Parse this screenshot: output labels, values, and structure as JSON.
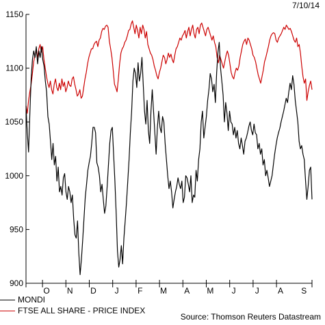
{
  "header": {
    "date": "7/10/14"
  },
  "footer": {
    "source": "Source: Thomson Reuters Datastream"
  },
  "chart_data": {
    "type": "line",
    "title": "",
    "xlabel": "",
    "ylabel": "",
    "ylim": [
      900,
      1150
    ],
    "yticks": [
      900,
      950,
      1000,
      1050,
      1100,
      1150
    ],
    "month_labels": [
      "O",
      "N",
      "D",
      "J",
      "F",
      "M",
      "A",
      "M",
      "J",
      "J",
      "A",
      "S"
    ],
    "grid": false,
    "legend": "bottom-left",
    "series": [
      {
        "name": "MONDI",
        "color": "#000000",
        "values": [
          1065,
          1040,
          1022,
          1058,
          1090,
          1108,
          1116,
          1110,
          1120,
          1104,
          1116,
          1110,
          1120,
          1108,
          1102,
          1088,
          1078,
          1055,
          1048,
          1032,
          1015,
          1030,
          1010,
          1018,
          995,
          1008,
          985,
          990,
          982,
          998,
          1002,
          985,
          978,
          990,
          985,
          975,
          982,
          960,
          945,
          942,
          958,
          928,
          908,
          922,
          940,
          960,
          980,
          992,
          1005,
          1012,
          1018,
          1030,
          1045,
          1045,
          1040,
          1012,
          1008,
          1000,
          985,
          992,
          978,
          965,
          972,
          990,
          1010,
          1030,
          1042,
          1045,
          1020,
          995,
          965,
          930,
          915,
          922,
          935,
          918,
          942,
          958,
          975,
          995,
          1015,
          1040,
          1060,
          1088,
          1100,
          1095,
          1082,
          1105,
          1088,
          1095,
          1110,
          1085,
          1060,
          1048,
          1070,
          1042,
          1030,
          1060,
          1080,
          1060,
          1040,
          1020,
          1045,
          1060,
          1045,
          1040,
          1055,
          1050,
          1030,
          1015,
          1000,
          988,
          995,
          985,
          970,
          978,
          985,
          990,
          998,
          992,
          988,
          995,
          975,
          980,
          1000,
          998,
          992,
          985,
          1000,
          975,
          982,
          980,
          1005,
          995,
          1015,
          1025,
          1050,
          1060,
          1035,
          1045,
          1055,
          1070,
          1080,
          1095,
          1090,
          1078,
          1085,
          1068,
          1096,
          1115,
          1124,
          1100,
          1088,
          1075,
          1050,
          1068,
          1058,
          1042,
          1060,
          1050,
          1048,
          1038,
          1045,
          1035,
          1042,
          1030,
          1025,
          1035,
          1028,
          1020,
          1032,
          1035,
          1040,
          1046,
          1050,
          1042,
          1038,
          1048,
          1040,
          1038,
          1025,
          1030,
          1020,
          1025,
          1010,
          1015,
          1000,
          1005,
          998,
          990,
          995,
          1000,
          1010,
          1020,
          1028,
          1035,
          1040,
          1044,
          1050,
          1055,
          1060,
          1066,
          1072,
          1068,
          1078,
          1086,
          1080,
          1093,
          1085,
          1070,
          1060,
          1050,
          1032,
          1025,
          1028,
          1020,
          1015,
          995,
          978,
          990,
          1005,
          1008,
          978
        ]
      },
      {
        "name": "FTSE ALL SHARE - PRICE INDEX",
        "color": "#cc0000",
        "values": [
          1065,
          1058,
          1070,
          1078,
          1085,
          1095,
          1106,
          1112,
          1116,
          1110,
          1118,
          1122,
          1115,
          1120,
          1108,
          1100,
          1092,
          1086,
          1082,
          1088,
          1080,
          1076,
          1085,
          1090,
          1082,
          1079,
          1086,
          1080,
          1090,
          1083,
          1087,
          1078,
          1082,
          1088,
          1084,
          1083,
          1090,
          1092,
          1085,
          1080,
          1074,
          1076,
          1080,
          1072,
          1074,
          1082,
          1090,
          1096,
          1104,
          1110,
          1114,
          1118,
          1118,
          1122,
          1124,
          1125,
          1120,
          1126,
          1128,
          1134,
          1137,
          1136,
          1139,
          1140,
          1138,
          1125,
          1118,
          1110,
          1098,
          1085,
          1082,
          1078,
          1090,
          1104,
          1114,
          1118,
          1120,
          1124,
          1126,
          1130,
          1135,
          1136,
          1141,
          1144,
          1138,
          1132,
          1140,
          1135,
          1128,
          1138,
          1132,
          1140,
          1136,
          1128,
          1134,
          1122,
          1118,
          1114,
          1112,
          1108,
          1102,
          1098,
          1093,
          1090,
          1096,
          1100,
          1106,
          1112,
          1110,
          1104,
          1108,
          1114,
          1110,
          1113,
          1108,
          1105,
          1112,
          1118,
          1120,
          1124,
          1128,
          1126,
          1130,
          1132,
          1135,
          1128,
          1134,
          1138,
          1130,
          1136,
          1140,
          1132,
          1128,
          1136,
          1138,
          1132,
          1140,
          1142,
          1138,
          1134,
          1130,
          1136,
          1138,
          1134,
          1130,
          1126,
          1130,
          1124,
          1120,
          1110,
          1105,
          1112,
          1108,
          1104,
          1100,
          1106,
          1112,
          1116,
          1112,
          1104,
          1096,
          1092,
          1090,
          1096,
          1100,
          1098,
          1102,
          1110,
          1116,
          1122,
          1125,
          1127,
          1122,
          1128,
          1126,
          1122,
          1118,
          1112,
          1110,
          1106,
          1100,
          1094,
          1090,
          1086,
          1092,
          1098,
          1106,
          1110,
          1115,
          1120,
          1126,
          1130,
          1132,
          1133,
          1132,
          1126,
          1124,
          1128,
          1130,
          1132,
          1135,
          1138,
          1136,
          1140,
          1138,
          1136,
          1137,
          1134,
          1130,
          1126,
          1124,
          1128,
          1120,
          1122,
          1114,
          1102,
          1092,
          1086,
          1090,
          1070,
          1078,
          1084,
          1088,
          1080
        ]
      }
    ]
  }
}
